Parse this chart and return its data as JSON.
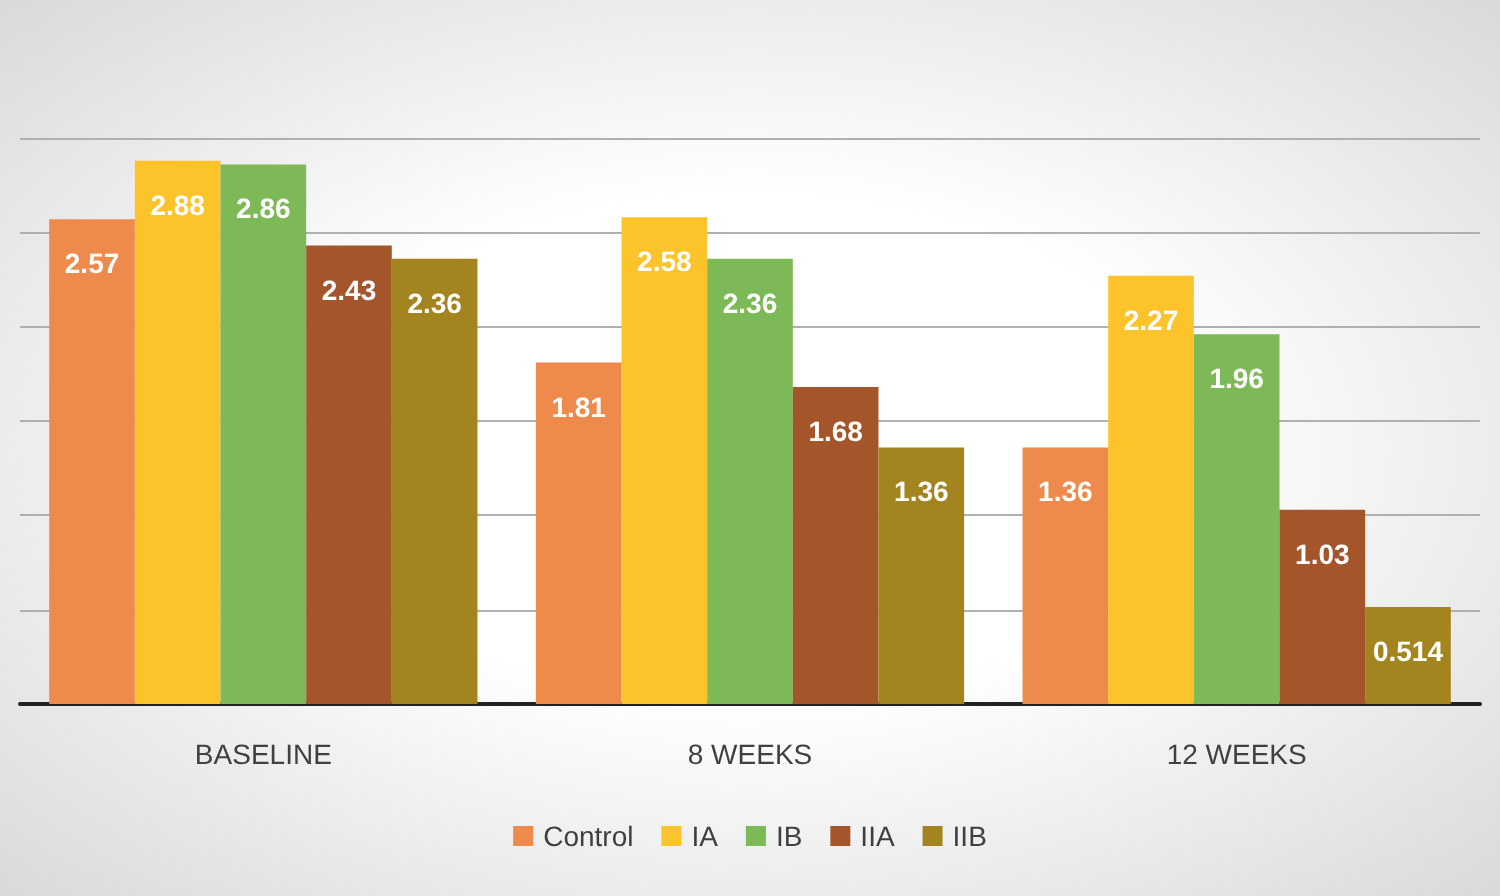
{
  "chart_data": {
    "type": "bar",
    "categories": [
      "BASELINE",
      "8 WEEKS",
      "12 WEEKS"
    ],
    "series": [
      {
        "name": "Control",
        "color": "#ed8a4c",
        "values": [
          2.57,
          1.81,
          1.36
        ]
      },
      {
        "name": "IA",
        "color": "#fdc32a",
        "values": [
          2.88,
          2.58,
          2.27
        ]
      },
      {
        "name": "IB",
        "color": "#7dba57",
        "values": [
          2.86,
          2.36,
          1.96
        ]
      },
      {
        "name": "IIA",
        "color": "#a4562a",
        "values": [
          2.43,
          1.68,
          1.03
        ]
      },
      {
        "name": "IIB",
        "color": "#a3841f",
        "values": [
          2.36,
          1.36,
          0.514
        ]
      }
    ],
    "ylim": [
      0,
      3
    ],
    "yticks": [
      {
        "value": 0,
        "label": null
      },
      {
        "value": 0.5,
        "label": null
      },
      {
        "value": 1,
        "label": null
      },
      {
        "value": 1.5,
        "label": null
      },
      {
        "value": 2,
        "label": null
      },
      {
        "value": 2.5,
        "label": null
      },
      {
        "value": 3,
        "label": null
      }
    ],
    "grid": "y",
    "tick_labels": "x",
    "data_labels": true,
    "legend": "bottom"
  }
}
